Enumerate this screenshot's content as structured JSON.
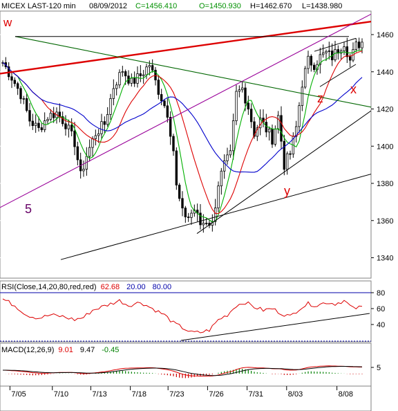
{
  "chart_data": [
    {
      "type": "candlestick",
      "header": {
        "symbol": "MICEX LAST-120 min",
        "date": "08/09/2012",
        "close": "C=1456.410",
        "open": "O=1450.930",
        "high": "H=1462.670",
        "low": "L=1438.980"
      },
      "x_ticks": [
        "7/05",
        "7/10",
        "7/13",
        "7/18",
        "7/23",
        "7/26",
        "7/31",
        "8/03",
        "8/08"
      ],
      "y_ticks": [
        "1460",
        "1440",
        "1420",
        "1400",
        "1380",
        "1360",
        "1340"
      ],
      "ylim": [
        1330,
        1471
      ],
      "bar_count": 121,
      "price_path": [
        [
          0,
          1445
        ],
        [
          3,
          1437
        ],
        [
          6,
          1428
        ],
        [
          9,
          1414
        ],
        [
          12,
          1409
        ],
        [
          15,
          1416
        ],
        [
          18,
          1418
        ],
        [
          21,
          1412
        ],
        [
          24,
          1402
        ],
        [
          26,
          1384
        ],
        [
          28,
          1395
        ],
        [
          31,
          1407
        ],
        [
          34,
          1412
        ],
        [
          37,
          1432
        ],
        [
          40,
          1441
        ],
        [
          43,
          1434
        ],
        [
          46,
          1438
        ],
        [
          49,
          1444
        ],
        [
          52,
          1430
        ],
        [
          55,
          1418
        ],
        [
          57,
          1398
        ],
        [
          58,
          1378
        ],
        [
          60,
          1364
        ],
        [
          62,
          1362
        ],
        [
          64,
          1366
        ],
        [
          66,
          1358
        ],
        [
          68,
          1360
        ],
        [
          70,
          1358
        ],
        [
          72,
          1380
        ],
        [
          74,
          1390
        ],
        [
          76,
          1395
        ],
        [
          78,
          1428
        ],
        [
          80,
          1431
        ],
        [
          82,
          1421
        ],
        [
          84,
          1407
        ],
        [
          86,
          1414
        ],
        [
          88,
          1409
        ],
        [
          90,
          1404
        ],
        [
          92,
          1416
        ],
        [
          94,
          1390
        ],
        [
          96,
          1396
        ],
        [
          98,
          1410
        ],
        [
          100,
          1434
        ],
        [
          102,
          1446
        ],
        [
          104,
          1444
        ],
        [
          106,
          1448
        ],
        [
          108,
          1450
        ],
        [
          110,
          1448
        ],
        [
          112,
          1452
        ],
        [
          114,
          1456
        ],
        [
          116,
          1446
        ],
        [
          118,
          1454
        ],
        [
          120,
          1456
        ]
      ],
      "indicators": {
        "green_line": "fast moving average",
        "red_line": "medium moving average",
        "blue_line": "slow moving average"
      },
      "annotations": {
        "wave_w": "w",
        "wave_5": "5",
        "wave_y": "y",
        "wave_z": "z",
        "wave_x": "x"
      },
      "colors": {
        "candle_up": "#000000",
        "candle_down": "#000000",
        "ma_fast": "#00b000",
        "ma_mid": "#dd0000",
        "ma_slow": "#0000cc",
        "trend_red": "#dd0000",
        "channel_purple": "#990099",
        "trend_green": "#006600",
        "label_red": "#dd0000",
        "label_purple": "#660066"
      }
    },
    {
      "type": "line",
      "label": "RSI(Close,14,20,80,red,red)",
      "last_value": "62.68",
      "lower_level": "20.00",
      "upper_level": "80.00",
      "y_ticks": [
        "80",
        "60",
        "40"
      ],
      "ylim": [
        25,
        92
      ],
      "rsi_path": [
        [
          0,
          72
        ],
        [
          4,
          64
        ],
        [
          8,
          52
        ],
        [
          12,
          48
        ],
        [
          16,
          52
        ],
        [
          20,
          50
        ],
        [
          24,
          46
        ],
        [
          27,
          49
        ],
        [
          30,
          58
        ],
        [
          33,
          62
        ],
        [
          36,
          66
        ],
        [
          39,
          70
        ],
        [
          42,
          64
        ],
        [
          46,
          68
        ],
        [
          50,
          60
        ],
        [
          54,
          52
        ],
        [
          57,
          42
        ],
        [
          60,
          36
        ],
        [
          63,
          30
        ],
        [
          66,
          30
        ],
        [
          69,
          33
        ],
        [
          72,
          46
        ],
        [
          75,
          52
        ],
        [
          78,
          64
        ],
        [
          81,
          68
        ],
        [
          84,
          62
        ],
        [
          87,
          58
        ],
        [
          90,
          60
        ],
        [
          93,
          54
        ],
        [
          96,
          50
        ],
        [
          99,
          60
        ],
        [
          102,
          66
        ],
        [
          105,
          64
        ],
        [
          108,
          68
        ],
        [
          111,
          66
        ],
        [
          114,
          70
        ],
        [
          117,
          60
        ],
        [
          120,
          62
        ]
      ],
      "colors": {
        "rsi": "#dd0000",
        "level_upper": "#0000aa",
        "level_lower": "#0000aa"
      }
    },
    {
      "type": "line",
      "label": "MACD(12,26,9)",
      "macd_value": "9.01",
      "signal_value": "9.47",
      "hist_value": "-0.45",
      "y_ticks": [
        "5"
      ],
      "colors": {
        "macd": "#dd0000",
        "signal": "#000000",
        "hist": "#008000",
        "hist_neg": "#cc0000"
      }
    }
  ]
}
